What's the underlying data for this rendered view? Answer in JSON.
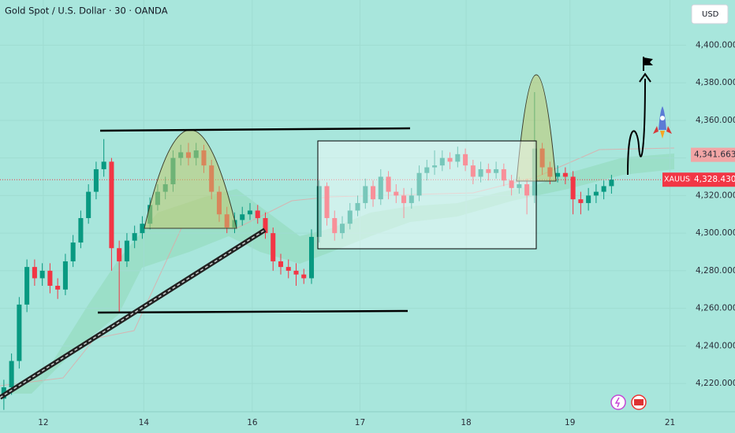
{
  "chart_data": {
    "type": "candlestick",
    "title": "Gold Spot / U.S. Dollar · 30 · OANDA",
    "currency": "USD",
    "up_color": "#089981",
    "down_color": "#f23645",
    "ylim": [
      4205,
      4424
    ],
    "yticks": [
      {
        "value": 4220,
        "label": "4,220.000"
      },
      {
        "value": 4240,
        "label": "4,240.000"
      },
      {
        "value": 4260,
        "label": "4,260.000"
      },
      {
        "value": 4280,
        "label": "4,280.000"
      },
      {
        "value": 4300,
        "label": "4,300.000"
      },
      {
        "value": 4320,
        "label": "4,320.000"
      },
      {
        "value": 4340,
        "label": "4,340.000"
      },
      {
        "value": 4360,
        "label": "4,360.000"
      },
      {
        "value": 4380,
        "label": "4,380.000"
      },
      {
        "value": 4400,
        "label": "4,400.000"
      }
    ],
    "xlim": [
      -0.5,
      88.7
    ],
    "xticks": [
      {
        "value": 5.13,
        "label": "12"
      },
      {
        "value": 18.2,
        "label": "14"
      },
      {
        "value": 32.3,
        "label": "16"
      },
      {
        "value": 46.3,
        "label": "17"
      },
      {
        "value": 60.1,
        "label": "18"
      },
      {
        "value": 73.6,
        "label": "19"
      },
      {
        "value": 86.6,
        "label": "21"
      }
    ],
    "level": {
      "value": 4341.663,
      "label": "4,341.663"
    },
    "last_price": {
      "name": "XAUUSD",
      "value": 4328.43,
      "label": "4,328.430"
    },
    "open": [
      4212,
      4218,
      4232,
      4262,
      4282,
      4276,
      4280,
      4272,
      4270,
      4285,
      4295,
      4308,
      4322,
      4334,
      4338,
      4292,
      4285,
      4296,
      4300,
      4305,
      4315,
      4322,
      4326,
      4340,
      4343,
      4340,
      4344,
      4336,
      4322,
      4310,
      4303,
      4307,
      4310,
      4312,
      4308,
      4300,
      4285,
      4282,
      4280,
      4278,
      4276,
      4298,
      4325,
      4308,
      4300,
      4305,
      4312,
      4316,
      4325,
      4318,
      4330,
      4322,
      4320,
      4316,
      4320,
      4332,
      4335,
      4336,
      4340,
      4338,
      4342,
      4336,
      4330,
      4334,
      4332,
      4334,
      4328,
      4324,
      4326,
      4320,
      4345,
      4335,
      4330,
      4332,
      4330,
      4318,
      4316,
      4320,
      4322,
      4325
    ],
    "high": [
      4222,
      4236,
      4266,
      4286,
      4286,
      4284,
      4284,
      4276,
      4289,
      4299,
      4312,
      4326,
      4338,
      4350,
      4340,
      4296,
      4300,
      4304,
      4309,
      4319,
      4326,
      4330,
      4344,
      4347,
      4348,
      4348,
      4347,
      4339,
      4325,
      4314,
      4311,
      4314,
      4316,
      4315,
      4311,
      4303,
      4289,
      4286,
      4284,
      4281,
      4302,
      4328,
      4327,
      4312,
      4309,
      4316,
      4320,
      4329,
      4328,
      4334,
      4333,
      4326,
      4324,
      4324,
      4336,
      4339,
      4344,
      4344,
      4343,
      4346,
      4345,
      4339,
      4338,
      4337,
      4338,
      4337,
      4331,
      4330,
      4329,
      4375,
      4348,
      4338,
      4336,
      4335,
      4333,
      4322,
      4324,
      4326,
      4328,
      4331
    ],
    "low": [
      4206,
      4214,
      4228,
      4258,
      4272,
      4272,
      4268,
      4265,
      4267,
      4282,
      4292,
      4305,
      4318,
      4330,
      4280,
      4258,
      4282,
      4292,
      4297,
      4302,
      4312,
      4318,
      4322,
      4336,
      4336,
      4336,
      4332,
      4318,
      4306,
      4300,
      4300,
      4304,
      4307,
      4305,
      4297,
      4280,
      4278,
      4276,
      4272,
      4273,
      4273,
      4295,
      4304,
      4296,
      4297,
      4302,
      4309,
      4313,
      4314,
      4315,
      4318,
      4316,
      4308,
      4313,
      4317,
      4328,
      4331,
      4333,
      4334,
      4335,
      4333,
      4326,
      4327,
      4328,
      4329,
      4325,
      4320,
      4321,
      4310,
      4316,
      4331,
      4326,
      4327,
      4326,
      4310,
      4310,
      4312,
      4316,
      4318,
      4321
    ],
    "close": [
      4218,
      4232,
      4262,
      4282,
      4276,
      4280,
      4272,
      4270,
      4285,
      4295,
      4308,
      4322,
      4334,
      4338,
      4292,
      4285,
      4296,
      4300,
      4305,
      4315,
      4322,
      4326,
      4340,
      4343,
      4340,
      4344,
      4336,
      4322,
      4310,
      4303,
      4307,
      4310,
      4312,
      4308,
      4300,
      4285,
      4282,
      4280,
      4278,
      4276,
      4298,
      4325,
      4308,
      4300,
      4305,
      4312,
      4316,
      4325,
      4318,
      4330,
      4322,
      4320,
      4316,
      4320,
      4332,
      4335,
      4336,
      4340,
      4338,
      4342,
      4336,
      4330,
      4334,
      4332,
      4334,
      4328,
      4324,
      4326,
      4320,
      4345,
      4335,
      4330,
      4332,
      4330,
      4318,
      4316,
      4320,
      4322,
      4325,
      4328.43
    ]
  }
}
